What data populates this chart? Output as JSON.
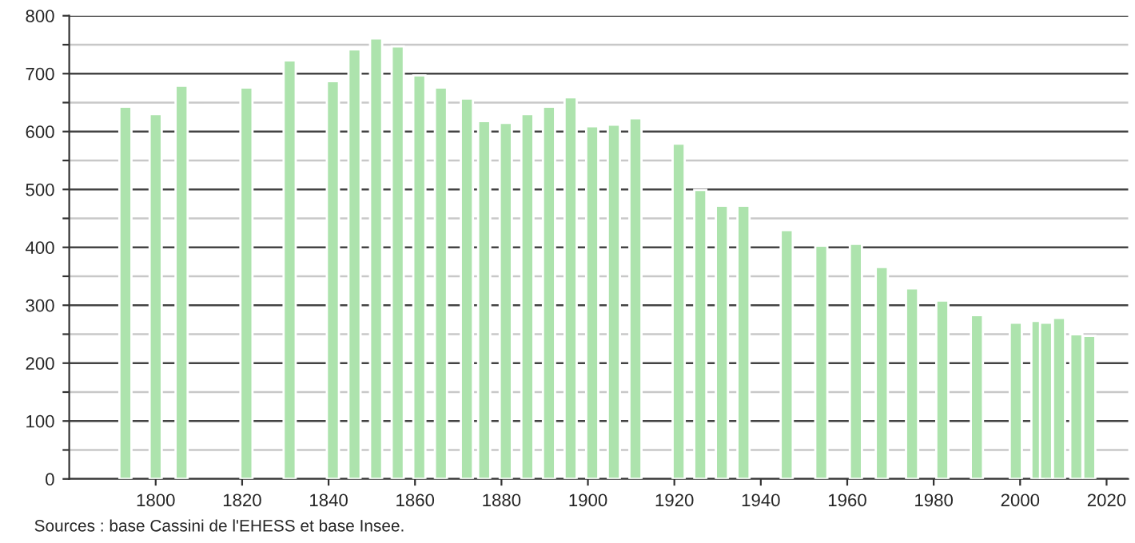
{
  "chart_data": {
    "type": "bar",
    "x": [
      1793,
      1800,
      1806,
      1821,
      1831,
      1841,
      1846,
      1851,
      1856,
      1861,
      1866,
      1872,
      1876,
      1881,
      1886,
      1891,
      1896,
      1901,
      1906,
      1911,
      1921,
      1926,
      1931,
      1936,
      1946,
      1954,
      1962,
      1968,
      1975,
      1982,
      1990,
      1999,
      2004,
      2006,
      2009,
      2013,
      2016
    ],
    "values": [
      643,
      630,
      679,
      676,
      723,
      687,
      742,
      761,
      747,
      697,
      676,
      657,
      618,
      615,
      630,
      643,
      659,
      609,
      612,
      623,
      579,
      499,
      472,
      472,
      430,
      403,
      406,
      366,
      329,
      308,
      283,
      270,
      273,
      270,
      278,
      250,
      247
    ],
    "color": "#ade3ad",
    "xlim": [
      1780,
      2025
    ],
    "xticks": [
      1800,
      1820,
      1840,
      1860,
      1880,
      1900,
      1920,
      1940,
      1960,
      1980,
      2000,
      2020
    ],
    "ylim": [
      0,
      800
    ],
    "yticks": [
      0,
      {
        "value": 50,
        "label": null
      },
      100,
      {
        "value": 150,
        "label": null
      },
      200,
      {
        "value": 250,
        "label": null
      },
      300,
      {
        "value": 350,
        "label": null
      },
      400,
      {
        "value": 450,
        "label": null
      },
      500,
      {
        "value": 550,
        "label": null
      },
      600,
      {
        "value": 650,
        "label": null
      },
      700,
      {
        "value": 750,
        "label": null
      },
      800
    ],
    "grid": "y",
    "annotations": [
      "Sources : base Cassini de l'EHESS et base Insee."
    ]
  }
}
